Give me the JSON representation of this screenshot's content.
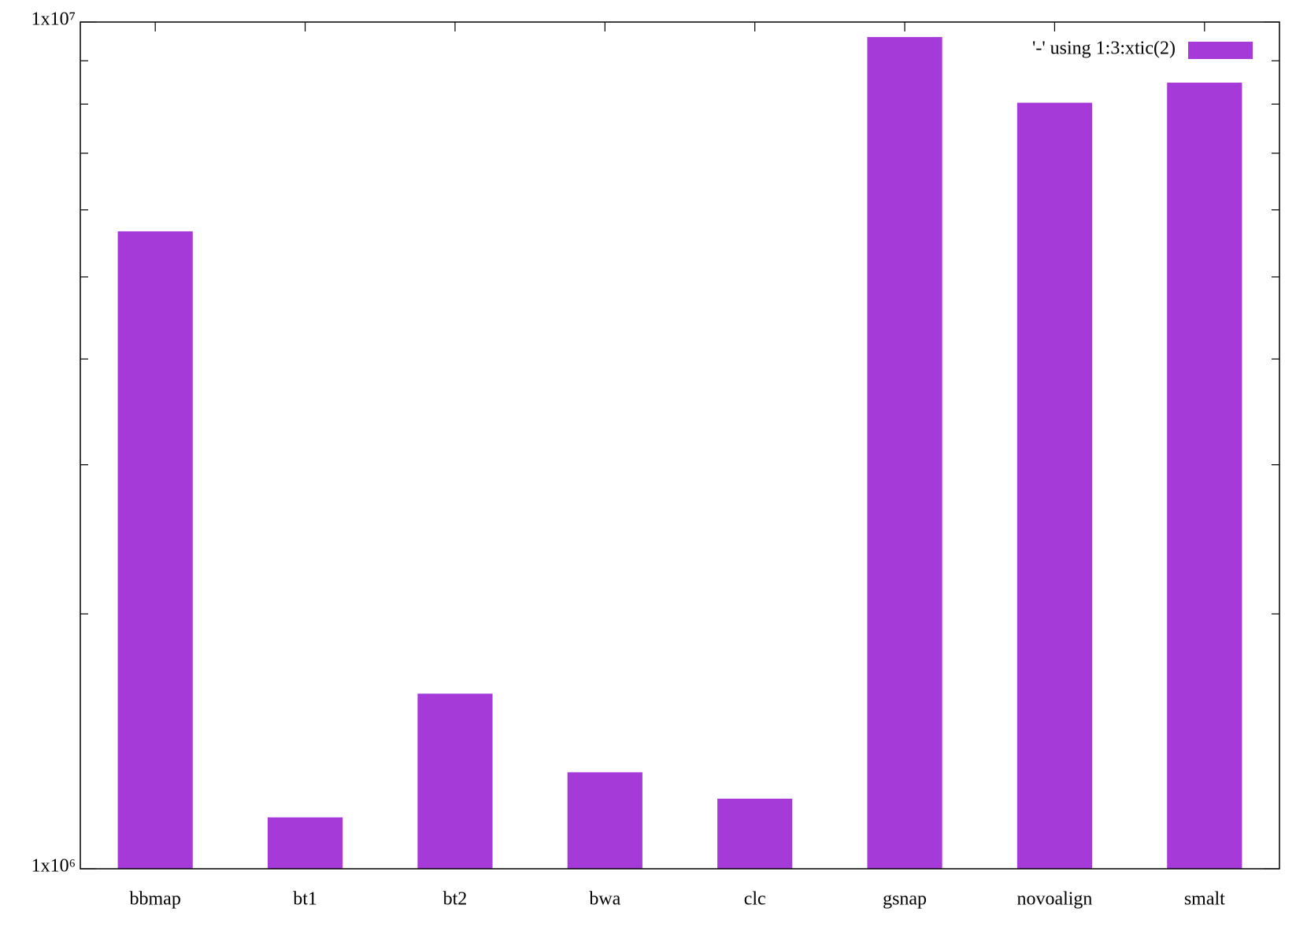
{
  "chart_data": {
    "type": "bar",
    "log_scale_y": true,
    "legend": "'-' using 1:3:xtic(2)",
    "legend_position": "top-right",
    "categories": [
      "bbmap",
      "bt1",
      "bt2",
      "bwa",
      "clc",
      "gsnap",
      "novoalign",
      "smalt"
    ],
    "values": [
      5660000,
      1150000,
      1610000,
      1300000,
      1210000,
      9600000,
      8030000,
      8480000
    ],
    "color": "#a63ad9",
    "ylim": [
      1000000,
      10000000
    ],
    "yticks": [
      {
        "value": 1000000,
        "label": "1x10⁶"
      },
      {
        "value": 10000000,
        "label": "1x10⁷"
      }
    ],
    "minor_yticks": [
      2000000,
      3000000,
      4000000,
      5000000,
      6000000,
      7000000,
      8000000,
      9000000
    ]
  }
}
